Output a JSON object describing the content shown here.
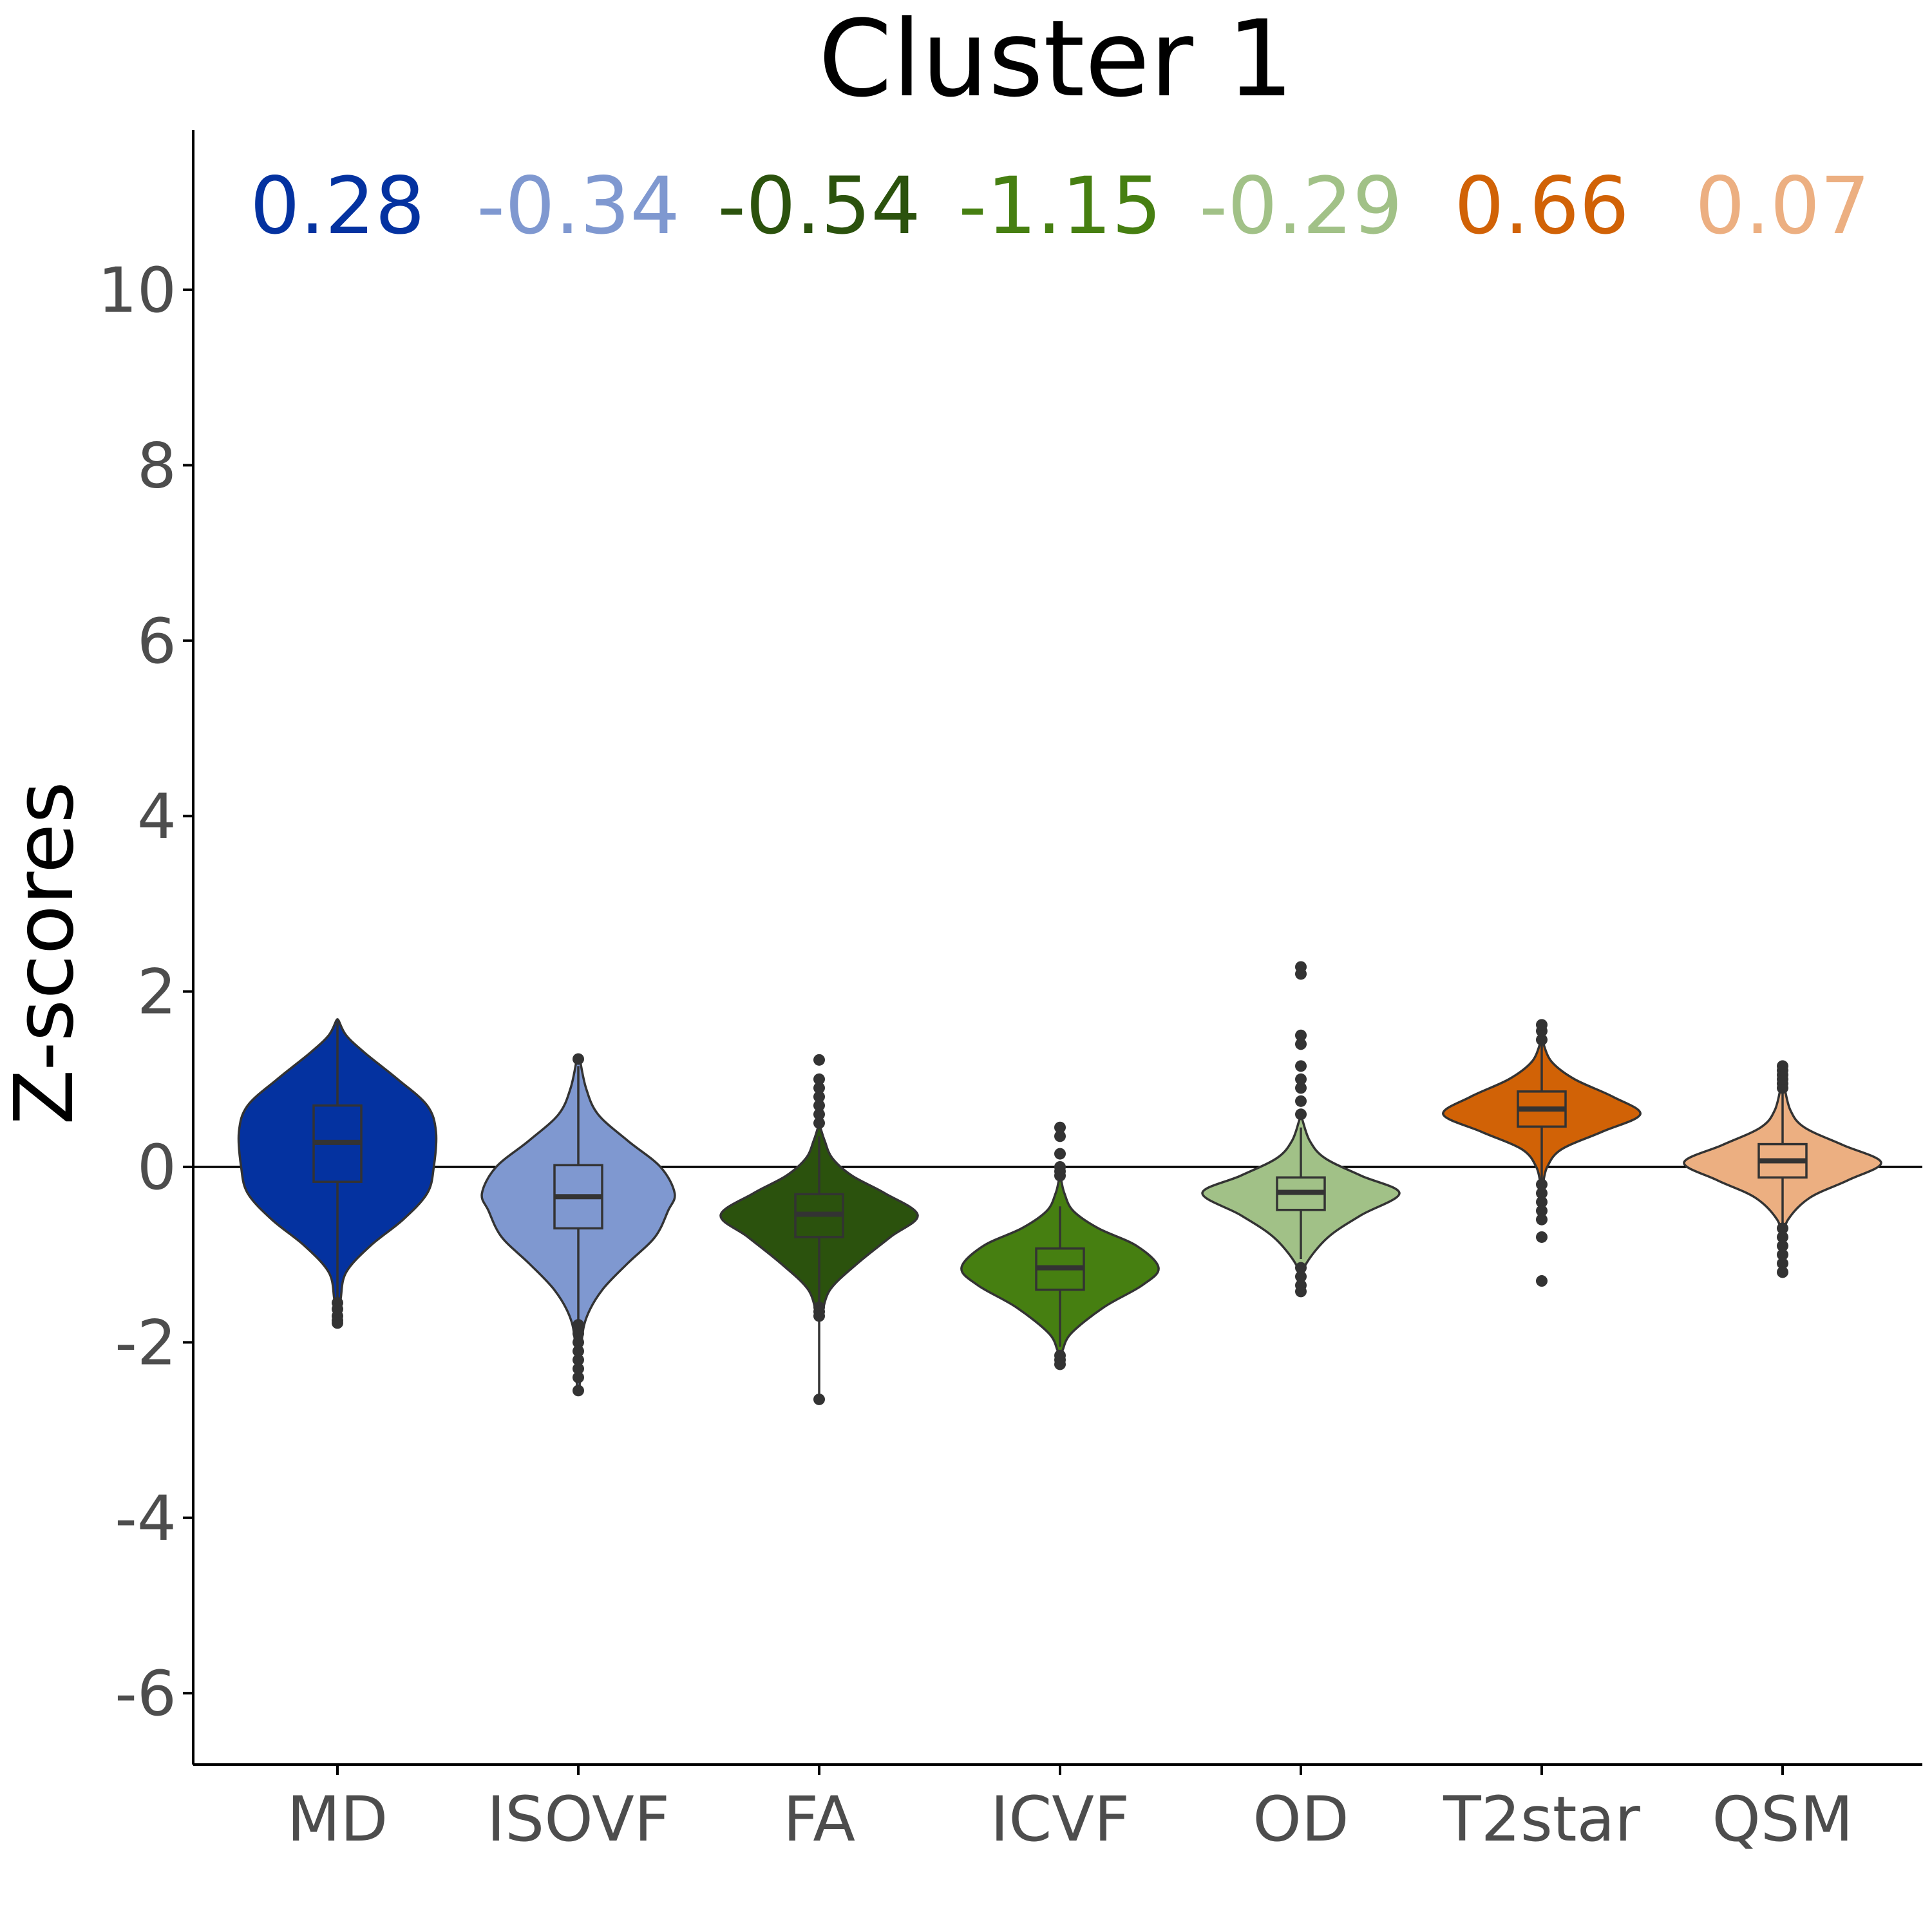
{
  "chart_data": {
    "type": "violin",
    "title": "Cluster 1",
    "xlabel": "",
    "ylabel": "Z-scores",
    "ylim": [
      -6.85,
      11.85
    ],
    "yticks": [
      -6,
      -4,
      -2,
      0,
      2,
      4,
      6,
      8,
      10
    ],
    "reference_line": 0,
    "grid": false,
    "categories": [
      "MD",
      "ISOVF",
      "FA",
      "ICVF",
      "OD",
      "T2star",
      "QSM"
    ],
    "series": [
      {
        "category": "MD",
        "mean_label": "0.28",
        "color": "#0432A0",
        "box": {
          "q1": -0.17,
          "median": 0.28,
          "q3": 0.7,
          "whisker_low": -1.5,
          "whisker_high": 1.65
        },
        "violin": {
          "min": -1.8,
          "max": 1.67,
          "profile": [
            [
              -1.8,
              0.01
            ],
            [
              -1.5,
              0.03
            ],
            [
              -1.2,
              0.08
            ],
            [
              -0.9,
              0.3
            ],
            [
              -0.6,
              0.6
            ],
            [
              -0.3,
              0.82
            ],
            [
              0.0,
              0.88
            ],
            [
              0.4,
              0.9
            ],
            [
              0.7,
              0.82
            ],
            [
              1.0,
              0.55
            ],
            [
              1.3,
              0.25
            ],
            [
              1.5,
              0.08
            ],
            [
              1.67,
              0.01
            ]
          ]
        },
        "outliers": [
          -1.55,
          -1.62,
          -1.7,
          -1.75,
          -1.78
        ]
      },
      {
        "category": "ISOVF",
        "mean_label": "-0.34",
        "color": "#7F98D0",
        "box": {
          "q1": -0.7,
          "median": -0.34,
          "q3": 0.02,
          "whisker_low": -1.75,
          "whisker_high": 1.15
        },
        "violin": {
          "min": -2.55,
          "max": 1.25,
          "profile": [
            [
              -2.55,
              0.01
            ],
            [
              -2.0,
              0.03
            ],
            [
              -1.7,
              0.08
            ],
            [
              -1.4,
              0.22
            ],
            [
              -1.1,
              0.45
            ],
            [
              -0.8,
              0.7
            ],
            [
              -0.5,
              0.82
            ],
            [
              -0.3,
              0.88
            ],
            [
              0.0,
              0.75
            ],
            [
              0.3,
              0.45
            ],
            [
              0.6,
              0.18
            ],
            [
              0.9,
              0.07
            ],
            [
              1.25,
              0.01
            ]
          ]
        },
        "outliers": [
          -1.8,
          -1.9,
          -2.0,
          -2.1,
          -2.2,
          -2.3,
          -2.4,
          -2.55,
          1.23
        ]
      },
      {
        "category": "FA",
        "mean_label": "-0.54",
        "color": "#2B520D",
        "box": {
          "q1": -0.8,
          "median": -0.54,
          "q3": -0.31,
          "whisker_low": -2.65,
          "whisker_high": 0.35
        },
        "violin": {
          "min": -1.7,
          "max": 0.45,
          "profile": [
            [
              -1.7,
              0.02
            ],
            [
              -1.4,
              0.1
            ],
            [
              -1.1,
              0.35
            ],
            [
              -0.8,
              0.65
            ],
            [
              -0.55,
              0.9
            ],
            [
              -0.3,
              0.6
            ],
            [
              -0.1,
              0.3
            ],
            [
              0.1,
              0.12
            ],
            [
              0.3,
              0.05
            ],
            [
              0.45,
              0.01
            ]
          ]
        },
        "outliers": [
          -1.6,
          -1.65,
          -1.7,
          -2.65,
          0.5,
          0.6,
          0.7,
          0.8,
          0.9,
          1.0,
          1.22
        ]
      },
      {
        "category": "ICVF",
        "mean_label": "-1.15",
        "color": "#467F11",
        "box": {
          "q1": -1.4,
          "median": -1.15,
          "q3": -0.93,
          "whisker_low": -2.05,
          "whisker_high": -0.45
        },
        "violin": {
          "min": -2.1,
          "max": -0.15,
          "profile": [
            [
              -2.1,
              0.02
            ],
            [
              -1.9,
              0.1
            ],
            [
              -1.6,
              0.4
            ],
            [
              -1.35,
              0.75
            ],
            [
              -1.15,
              0.9
            ],
            [
              -0.9,
              0.7
            ],
            [
              -0.7,
              0.35
            ],
            [
              -0.5,
              0.12
            ],
            [
              -0.3,
              0.04
            ],
            [
              -0.15,
              0.01
            ]
          ]
        },
        "outliers": [
          -2.15,
          -2.2,
          -2.25,
          -0.1,
          -0.05,
          0.0,
          0.15,
          0.35,
          0.45
        ]
      },
      {
        "category": "OD",
        "mean_label": "-0.29",
        "color": "#A1C187",
        "box": {
          "q1": -0.49,
          "median": -0.29,
          "q3": -0.12,
          "whisker_low": -1.05,
          "whisker_high": 0.45
        },
        "violin": {
          "min": -1.3,
          "max": 0.55,
          "profile": [
            [
              -1.3,
              0.01
            ],
            [
              -1.1,
              0.05
            ],
            [
              -0.8,
              0.25
            ],
            [
              -0.55,
              0.55
            ],
            [
              -0.3,
              0.9
            ],
            [
              -0.1,
              0.55
            ],
            [
              0.1,
              0.22
            ],
            [
              0.3,
              0.08
            ],
            [
              0.55,
              0.01
            ]
          ]
        },
        "outliers": [
          -1.15,
          -1.25,
          -1.35,
          -1.42,
          0.6,
          0.75,
          0.9,
          1.0,
          1.15,
          1.4,
          1.5,
          2.2,
          2.28
        ]
      },
      {
        "category": "T2star",
        "mean_label": "0.66",
        "color": "#D16206",
        "box": {
          "q1": 0.46,
          "median": 0.66,
          "q3": 0.86,
          "whisker_low": -0.15,
          "whisker_high": 1.4
        },
        "violin": {
          "min": -0.2,
          "max": 1.42,
          "profile": [
            [
              -0.2,
              0.01
            ],
            [
              0.0,
              0.05
            ],
            [
              0.2,
              0.18
            ],
            [
              0.4,
              0.55
            ],
            [
              0.6,
              0.9
            ],
            [
              0.8,
              0.65
            ],
            [
              1.0,
              0.3
            ],
            [
              1.2,
              0.09
            ],
            [
              1.42,
              0.01
            ]
          ]
        },
        "outliers": [
          -0.2,
          -0.3,
          -0.4,
          -0.5,
          -0.6,
          -0.8,
          -1.3,
          1.45,
          1.55,
          1.62
        ]
      },
      {
        "category": "QSM",
        "mean_label": "0.07",
        "color": "#ECAF81",
        "box": {
          "q1": -0.12,
          "median": 0.07,
          "q3": 0.26,
          "whisker_low": -0.65,
          "whisker_high": 0.85
        },
        "violin": {
          "min": -0.8,
          "max": 0.95,
          "profile": [
            [
              -0.8,
              0.01
            ],
            [
              -0.6,
              0.05
            ],
            [
              -0.35,
              0.25
            ],
            [
              -0.15,
              0.6
            ],
            [
              0.05,
              0.9
            ],
            [
              0.25,
              0.55
            ],
            [
              0.45,
              0.2
            ],
            [
              0.65,
              0.07
            ],
            [
              0.95,
              0.01
            ]
          ]
        },
        "outliers": [
          -0.7,
          -0.8,
          -0.9,
          -1.0,
          -1.1,
          -1.2,
          0.9,
          0.95,
          1.0,
          1.05,
          1.1,
          1.15
        ]
      }
    ]
  }
}
